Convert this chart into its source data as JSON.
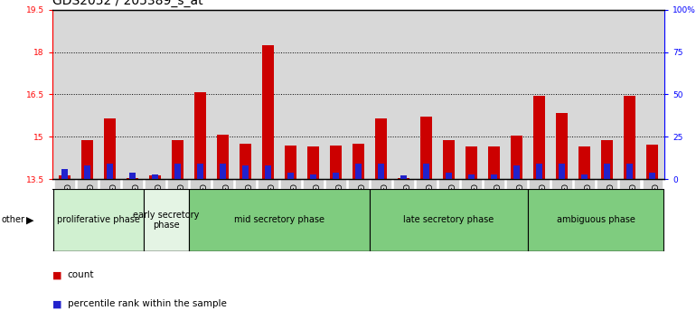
{
  "title": "GDS2052 / 205389_s_at",
  "samples": [
    "GSM109814",
    "GSM109815",
    "GSM109816",
    "GSM109817",
    "GSM109820",
    "GSM109821",
    "GSM109822",
    "GSM109824",
    "GSM109825",
    "GSM109826",
    "GSM109827",
    "GSM109828",
    "GSM109829",
    "GSM109830",
    "GSM109831",
    "GSM109834",
    "GSM109835",
    "GSM109836",
    "GSM109837",
    "GSM109838",
    "GSM109839",
    "GSM109818",
    "GSM109819",
    "GSM109823",
    "GSM109832",
    "GSM109833",
    "GSM109840"
  ],
  "count_values": [
    13.65,
    14.87,
    15.65,
    13.55,
    13.62,
    14.87,
    16.57,
    15.08,
    14.75,
    18.25,
    14.7,
    14.65,
    14.7,
    14.75,
    15.65,
    13.55,
    15.73,
    14.87,
    14.65,
    14.65,
    15.05,
    16.45,
    15.85,
    14.65,
    14.87,
    16.45,
    14.72
  ],
  "percentile_values": [
    6,
    8,
    9,
    4,
    3,
    9,
    9,
    9,
    8,
    8,
    4,
    3,
    4,
    9,
    9,
    2,
    9,
    4,
    3,
    3,
    8,
    9,
    9,
    3,
    9,
    9,
    4
  ],
  "base_value": 13.5,
  "ylim_left": [
    13.5,
    19.5
  ],
  "ylim_right": [
    0,
    100
  ],
  "right_ticks": [
    0,
    25,
    50,
    75,
    100
  ],
  "right_tick_labels": [
    "0",
    "25",
    "50",
    "75",
    "100%"
  ],
  "left_ticks": [
    13.5,
    15.0,
    16.5,
    18.0,
    19.5
  ],
  "left_tick_labels": [
    "13.5",
    "15",
    "16.5",
    "18",
    "19.5"
  ],
  "grid_values": [
    15.0,
    16.5,
    18.0
  ],
  "bar_color_count": "#cc0000",
  "bar_color_percentile": "#2222cc",
  "phases": [
    {
      "label": "proliferative phase",
      "start": 0,
      "end": 4,
      "color": "#d0f0d0"
    },
    {
      "label": "early secretory\nphase",
      "start": 4,
      "end": 6,
      "color": "#e4f4e4"
    },
    {
      "label": "mid secretory phase",
      "start": 6,
      "end": 14,
      "color": "#7fcc7f"
    },
    {
      "label": "late secretory phase",
      "start": 14,
      "end": 21,
      "color": "#7fcc7f"
    },
    {
      "label": "ambiguous phase",
      "start": 21,
      "end": 27,
      "color": "#7fcc7f"
    }
  ],
  "bar_width": 0.55,
  "percentile_bar_width": 0.28,
  "title_fontsize": 10,
  "tick_fontsize": 6.5,
  "phase_fontsize": 7,
  "bg_color": "#d8d8d8",
  "other_label": "other"
}
